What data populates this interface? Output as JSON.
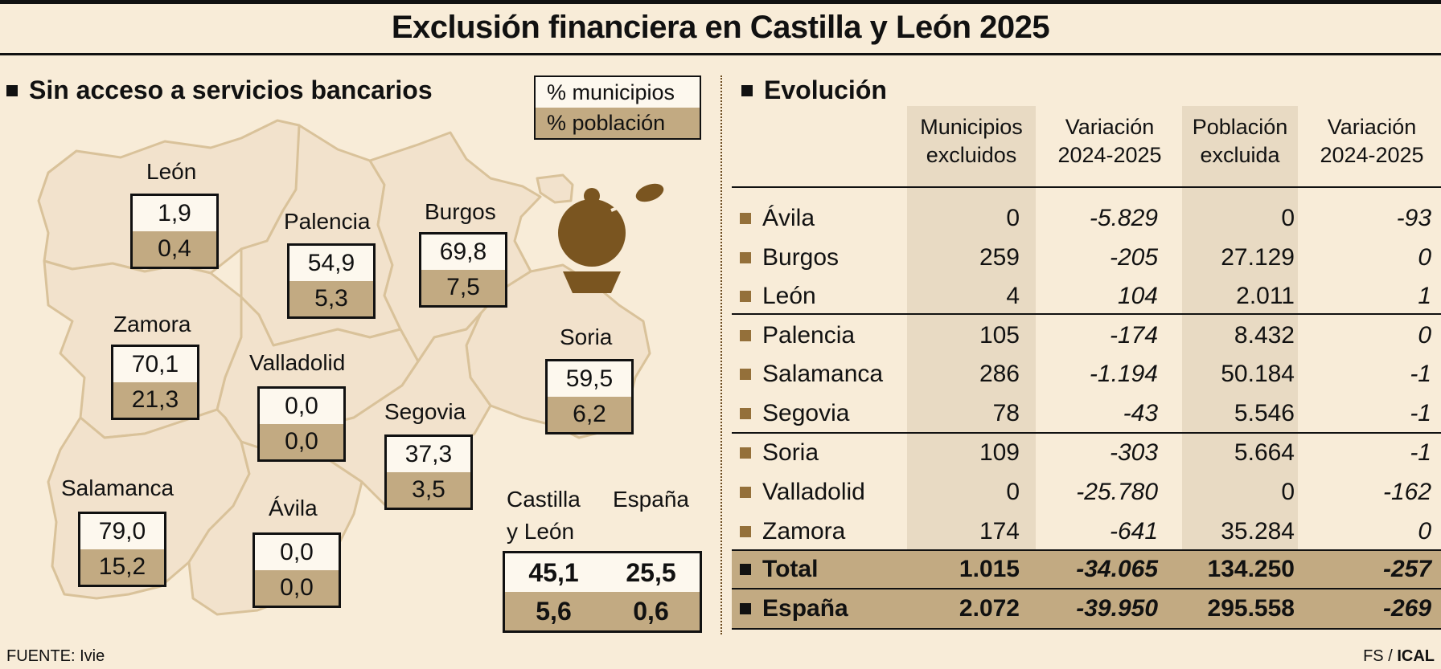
{
  "title": "Exclusión financiera en Castilla y León 2025",
  "left": {
    "heading": "Sin acceso a servicios bancarios",
    "legend": {
      "top": "% municipios",
      "bottom": "% población"
    },
    "provinces": [
      {
        "name": "León",
        "municipios": "1,9",
        "poblacion": "0,4"
      },
      {
        "name": "Palencia",
        "municipios": "54,9",
        "poblacion": "5,3"
      },
      {
        "name": "Burgos",
        "municipios": "69,8",
        "poblacion": "7,5"
      },
      {
        "name": "Zamora",
        "municipios": "70,1",
        "poblacion": "21,3"
      },
      {
        "name": "Valladolid",
        "municipios": "0,0",
        "poblacion": "0,0"
      },
      {
        "name": "Soria",
        "municipios": "59,5",
        "poblacion": "6,2"
      },
      {
        "name": "Segovia",
        "municipios": "37,3",
        "poblacion": "3,5"
      },
      {
        "name": "Salamanca",
        "municipios": "79,0",
        "poblacion": "15,2"
      },
      {
        "name": "Ávila",
        "municipios": "0,0",
        "poblacion": "0,0"
      }
    ],
    "summary": {
      "cyl_label_1": "Castilla",
      "cyl_label_2": "y León",
      "esp_label": "España",
      "cyl_municipios": "45,1",
      "esp_municipios": "25,5",
      "cyl_poblacion": "5,6",
      "esp_poblacion": "0,6"
    }
  },
  "right": {
    "heading": "Evolución",
    "columns": [
      {
        "l1": "Municipios",
        "l2": "excluidos"
      },
      {
        "l1": "Variación",
        "l2": "2024-2025"
      },
      {
        "l1": "Población",
        "l2": "excluida"
      },
      {
        "l1": "Variación",
        "l2": "2024-2025"
      }
    ],
    "rows": [
      {
        "name": "Ávila",
        "mun": "0",
        "var1": "-5.829",
        "pob": "0",
        "var2": "-93"
      },
      {
        "name": "Burgos",
        "mun": "259",
        "var1": "-205",
        "pob": "27.129",
        "var2": "0"
      },
      {
        "name": "León",
        "mun": "4",
        "var1": "104",
        "pob": "2.011",
        "var2": "1"
      },
      {
        "name": "Palencia",
        "mun": "105",
        "var1": "-174",
        "pob": "8.432",
        "var2": "0"
      },
      {
        "name": "Salamanca",
        "mun": "286",
        "var1": "-1.194",
        "pob": "50.184",
        "var2": "-1"
      },
      {
        "name": "Segovia",
        "mun": "78",
        "var1": "-43",
        "pob": "5.546",
        "var2": "-1"
      },
      {
        "name": "Soria",
        "mun": "109",
        "var1": "-303",
        "pob": "5.664",
        "var2": "-1"
      },
      {
        "name": "Valladolid",
        "mun": "0",
        "var1": "-25.780",
        "pob": "0",
        "var2": "-162"
      },
      {
        "name": "Zamora",
        "mun": "174",
        "var1": "-641",
        "pob": "35.284",
        "var2": "0"
      }
    ],
    "totals": [
      {
        "name": "Total",
        "mun": "1.015",
        "var1": "-34.065",
        "pob": "134.250",
        "var2": "-257"
      },
      {
        "name": "España",
        "mun": "2.072",
        "var1": "-39.950",
        "pob": "295.558",
        "var2": "-269"
      }
    ]
  },
  "footer": {
    "source": "FUENTE: Ivie",
    "credit_1": "FS / ",
    "credit_2": "ICAL"
  },
  "colors": {
    "background": "#f8ecd8",
    "map_fill": "#f2e2cc",
    "map_border": "#d9c29a",
    "box_dark": "#c2aa82",
    "table_shade": "#e8dac3",
    "icon": "#7a5520"
  },
  "icons": [
    "bank-icon"
  ]
}
